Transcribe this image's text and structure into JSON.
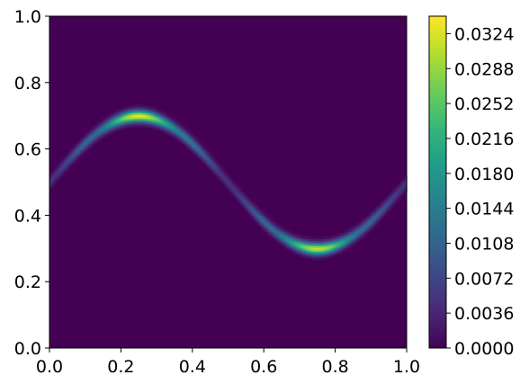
{
  "chart_data": {
    "type": "heatmap",
    "title": "",
    "xlabel": "",
    "ylabel": "",
    "xlim": [
      0.0,
      1.0
    ],
    "ylim": [
      0.0,
      1.0
    ],
    "x_ticks": [
      "0.0",
      "0.2",
      "0.4",
      "0.6",
      "0.8",
      "1.0"
    ],
    "y_ticks": [
      "0.0",
      "0.2",
      "0.4",
      "0.6",
      "0.8",
      "1.0"
    ],
    "grid": false,
    "colormap": "viridis",
    "colorbar": {
      "range": [
        0.0,
        0.0342
      ],
      "ticks": [
        "0.0000",
        "0.0036",
        "0.0072",
        "0.0108",
        "0.0144",
        "0.0180",
        "0.0216",
        "0.0252",
        "0.0288",
        "0.0324"
      ]
    },
    "field": {
      "description_of_ridge": "y = 0.5 + 0.2*sin(2*pi*x)",
      "center": 0.5,
      "amplitude": 0.2,
      "period": 1.0,
      "ridge_width": 0.012,
      "ridge_peak_values": [
        {
          "x": 0.0,
          "value": 0.005
        },
        {
          "x": 0.125,
          "value": 0.012
        },
        {
          "x": 0.25,
          "value": 0.033
        },
        {
          "x": 0.375,
          "value": 0.014
        },
        {
          "x": 0.5,
          "value": 0.005
        },
        {
          "x": 0.625,
          "value": 0.012
        },
        {
          "x": 0.75,
          "value": 0.031
        },
        {
          "x": 0.875,
          "value": 0.012
        },
        {
          "x": 1.0,
          "value": 0.005
        }
      ]
    }
  }
}
